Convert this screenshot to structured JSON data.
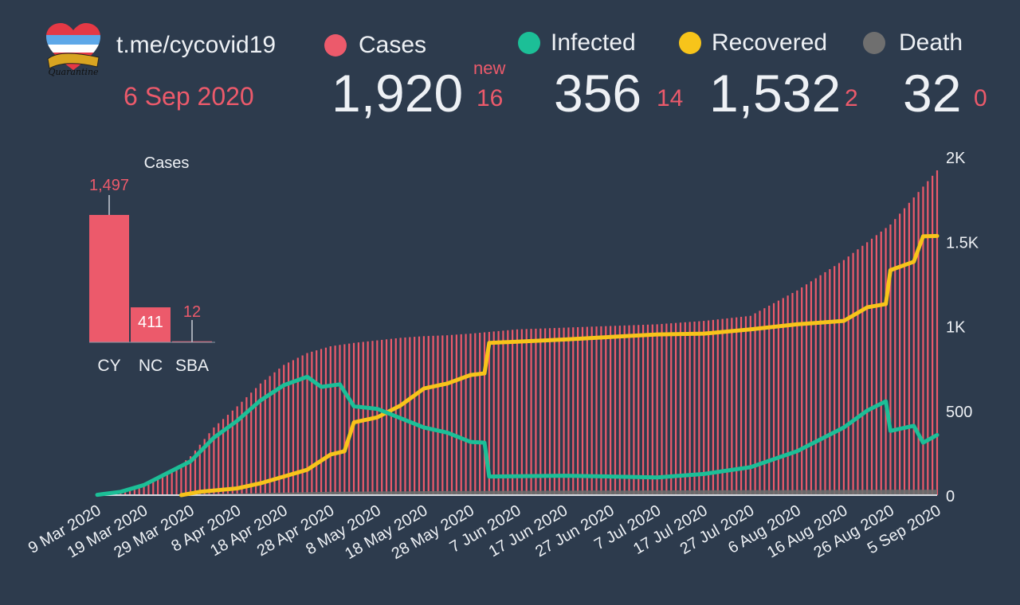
{
  "header": {
    "channel": "t.me/cycovid19",
    "date": "6 Sep 2020",
    "logo_text": "Quarantine",
    "new_label": "new"
  },
  "stats": {
    "cases": {
      "label": "Cases",
      "value": "1,920",
      "new": "16",
      "color": "#ec5a6b"
    },
    "infected": {
      "label": "Infected",
      "value": "356",
      "new": "14",
      "color": "#1cbf97"
    },
    "recovered": {
      "label": "Recovered",
      "value": "1,532",
      "new": "2",
      "color": "#f7c41a"
    },
    "death": {
      "label": "Death",
      "value": "32",
      "new": "0",
      "color": "#6f6f6f"
    }
  },
  "chart_data": [
    {
      "type": "bar",
      "title": "Cases",
      "categories": [
        "CY",
        "NC",
        "SBA"
      ],
      "values": [
        1497,
        411,
        12
      ],
      "value_labels": [
        "1,497",
        "411",
        "12"
      ],
      "color": "#ec5a6b"
    },
    {
      "type": "bar+line",
      "x_start": "2020-03-09",
      "x_end": "2020-09-05",
      "x_tick_labels": [
        "9 Mar 2020",
        "19 Mar 2020",
        "29 Mar 2020",
        "8 Apr 2020",
        "18 Apr 2020",
        "28 Apr 2020",
        "8 May 2020",
        "18 May 2020",
        "28 May 2020",
        "7 Jun 2020",
        "17 Jun 2020",
        "27 Jun 2020",
        "7 Jul 2020",
        "17 Jul 2020",
        "27 Jul 2020",
        "6 Aug 2020",
        "16 Aug 2020",
        "26 Aug 2020",
        "5 Sep 2020"
      ],
      "y_ticks": [
        0,
        500,
        1000,
        1500,
        2000
      ],
      "y_tick_labels": [
        "0",
        "500",
        "1K",
        "1.5K",
        "2K"
      ],
      "ylim": [
        0,
        2000
      ],
      "y_axis_side": "right",
      "series": [
        {
          "name": "Cases",
          "type": "bar",
          "color": "#ec5a6b",
          "points": [
            [
              "2020-03-09",
              2
            ],
            [
              "2020-03-15",
              25
            ],
            [
              "2020-03-20",
              75
            ],
            [
              "2020-03-25",
              135
            ],
            [
              "2020-03-29",
              230
            ],
            [
              "2020-04-03",
              400
            ],
            [
              "2020-04-08",
              525
            ],
            [
              "2020-04-13",
              660
            ],
            [
              "2020-04-18",
              770
            ],
            [
              "2020-04-23",
              840
            ],
            [
              "2020-04-28",
              880
            ],
            [
              "2020-05-03",
              900
            ],
            [
              "2020-05-08",
              915
            ],
            [
              "2020-05-13",
              930
            ],
            [
              "2020-05-18",
              940
            ],
            [
              "2020-05-23",
              945
            ],
            [
              "2020-05-28",
              955
            ],
            [
              "2020-06-07",
              980
            ],
            [
              "2020-06-17",
              990
            ],
            [
              "2020-06-27",
              1000
            ],
            [
              "2020-07-07",
              1010
            ],
            [
              "2020-07-17",
              1030
            ],
            [
              "2020-07-27",
              1060
            ],
            [
              "2020-08-06",
              1210
            ],
            [
              "2020-08-16",
              1390
            ],
            [
              "2020-08-26",
              1600
            ],
            [
              "2020-09-05",
              1920
            ]
          ]
        },
        {
          "name": "Infected",
          "type": "line",
          "color": "#1cbf97",
          "points": [
            [
              "2020-03-09",
              2
            ],
            [
              "2020-03-14",
              20
            ],
            [
              "2020-03-19",
              60
            ],
            [
              "2020-03-24",
              130
            ],
            [
              "2020-03-29",
              200
            ],
            [
              "2020-04-03",
              340
            ],
            [
              "2020-04-08",
              440
            ],
            [
              "2020-04-13",
              560
            ],
            [
              "2020-04-18",
              650
            ],
            [
              "2020-04-23",
              700
            ],
            [
              "2020-04-26",
              640
            ],
            [
              "2020-04-30",
              655
            ],
            [
              "2020-05-03",
              525
            ],
            [
              "2020-05-08",
              510
            ],
            [
              "2020-05-13",
              455
            ],
            [
              "2020-05-18",
              400
            ],
            [
              "2020-05-23",
              370
            ],
            [
              "2020-05-28",
              315
            ],
            [
              "2020-05-31",
              310
            ],
            [
              "2020-06-01",
              110
            ],
            [
              "2020-06-17",
              115
            ],
            [
              "2020-06-27",
              110
            ],
            [
              "2020-07-07",
              105
            ],
            [
              "2020-07-17",
              125
            ],
            [
              "2020-07-27",
              165
            ],
            [
              "2020-08-06",
              260
            ],
            [
              "2020-08-16",
              400
            ],
            [
              "2020-08-21",
              500
            ],
            [
              "2020-08-25",
              555
            ],
            [
              "2020-08-26",
              380
            ],
            [
              "2020-08-31",
              410
            ],
            [
              "2020-09-02",
              310
            ],
            [
              "2020-09-05",
              356
            ]
          ]
        },
        {
          "name": "Recovered",
          "type": "line",
          "color": "#f7c41a",
          "points": [
            [
              "2020-03-27",
              0
            ],
            [
              "2020-03-31",
              20
            ],
            [
              "2020-04-08",
              40
            ],
            [
              "2020-04-13",
              70
            ],
            [
              "2020-04-18",
              110
            ],
            [
              "2020-04-23",
              150
            ],
            [
              "2020-04-28",
              240
            ],
            [
              "2020-05-01",
              260
            ],
            [
              "2020-05-03",
              430
            ],
            [
              "2020-05-08",
              460
            ],
            [
              "2020-05-13",
              530
            ],
            [
              "2020-05-18",
              630
            ],
            [
              "2020-05-23",
              660
            ],
            [
              "2020-05-28",
              710
            ],
            [
              "2020-05-31",
              720
            ],
            [
              "2020-06-01",
              900
            ],
            [
              "2020-06-17",
              920
            ],
            [
              "2020-06-27",
              935
            ],
            [
              "2020-07-07",
              950
            ],
            [
              "2020-07-17",
              955
            ],
            [
              "2020-07-27",
              980
            ],
            [
              "2020-08-06",
              1010
            ],
            [
              "2020-08-16",
              1030
            ],
            [
              "2020-08-21",
              1110
            ],
            [
              "2020-08-25",
              1130
            ],
            [
              "2020-08-26",
              1330
            ],
            [
              "2020-08-31",
              1380
            ],
            [
              "2020-09-02",
              1530
            ],
            [
              "2020-09-05",
              1532
            ]
          ]
        },
        {
          "name": "Death",
          "type": "area",
          "color": "#6f6f6f",
          "points": [
            [
              "2020-03-09",
              0
            ],
            [
              "2020-03-25",
              2
            ],
            [
              "2020-04-08",
              10
            ],
            [
              "2020-04-28",
              20
            ],
            [
              "2020-05-28",
              25
            ],
            [
              "2020-09-05",
              32
            ]
          ]
        }
      ]
    }
  ]
}
